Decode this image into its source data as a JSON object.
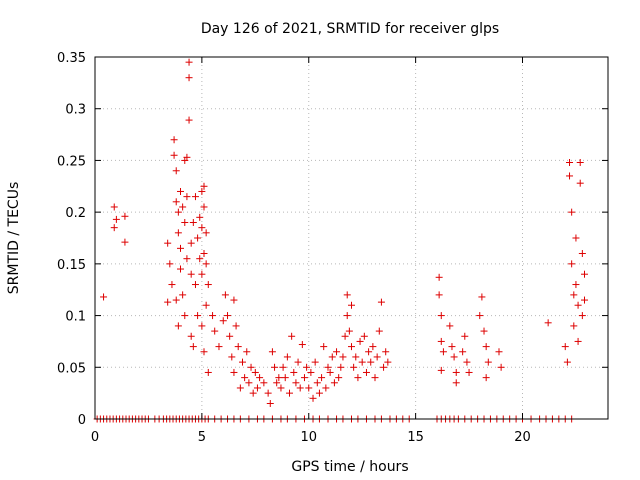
{
  "chart_data": {
    "type": "scatter",
    "title": "Day 126 of 2021, SRMTID for receiver glps",
    "xlabel": "GPS time / hours",
    "ylabel": "SRMTID / TECUs",
    "xlim": [
      0,
      24
    ],
    "ylim": [
      0,
      0.35
    ],
    "x_ticks": [
      0,
      5,
      10,
      15,
      20
    ],
    "x_tick_labels": [
      "0",
      "5",
      "10",
      "15",
      "20"
    ],
    "y_ticks": [
      0,
      0.05,
      0.1,
      0.15,
      0.2,
      0.25,
      0.3,
      0.35
    ],
    "y_tick_labels": [
      "0",
      "0.05",
      "0.1",
      "0.15",
      "0.2",
      "0.25",
      "0.3",
      "0.35"
    ],
    "grid": true,
    "marker": "plus",
    "series": [
      {
        "name": "SRMTID",
        "color": "#dd0000",
        "points": [
          [
            0.4,
            0.118
          ],
          [
            0.9,
            0.205
          ],
          [
            0.9,
            0.185
          ],
          [
            1.0,
            0.193
          ],
          [
            1.4,
            0.196
          ],
          [
            1.4,
            0.171
          ],
          [
            3.4,
            0.17
          ],
          [
            3.4,
            0.113
          ],
          [
            3.5,
            0.15
          ],
          [
            3.6,
            0.13
          ],
          [
            3.7,
            0.27
          ],
          [
            3.7,
            0.255
          ],
          [
            3.8,
            0.24
          ],
          [
            3.8,
            0.21
          ],
          [
            3.8,
            0.115
          ],
          [
            3.9,
            0.2
          ],
          [
            3.9,
            0.18
          ],
          [
            3.9,
            0.09
          ],
          [
            4.0,
            0.22
          ],
          [
            4.0,
            0.165
          ],
          [
            4.0,
            0.145
          ],
          [
            4.1,
            0.205
          ],
          [
            4.1,
            0.12
          ],
          [
            4.2,
            0.25
          ],
          [
            4.2,
            0.19
          ],
          [
            4.2,
            0.1
          ],
          [
            4.3,
            0.253
          ],
          [
            4.3,
            0.155
          ],
          [
            4.3,
            0.215
          ],
          [
            4.4,
            0.345
          ],
          [
            4.4,
            0.33
          ],
          [
            4.4,
            0.289
          ],
          [
            4.5,
            0.17
          ],
          [
            4.5,
            0.14
          ],
          [
            4.5,
            0.08
          ],
          [
            4.6,
            0.19
          ],
          [
            4.6,
            0.07
          ],
          [
            4.7,
            0.13
          ],
          [
            4.7,
            0.215
          ],
          [
            4.8,
            0.1
          ],
          [
            4.8,
            0.175
          ],
          [
            4.9,
            0.195
          ],
          [
            4.9,
            0.155
          ],
          [
            5.0,
            0.22
          ],
          [
            5.0,
            0.185
          ],
          [
            5.0,
            0.14
          ],
          [
            5.0,
            0.09
          ],
          [
            5.1,
            0.225
          ],
          [
            5.1,
            0.205
          ],
          [
            5.1,
            0.16
          ],
          [
            5.1,
            0.065
          ],
          [
            5.2,
            0.18
          ],
          [
            5.2,
            0.15
          ],
          [
            5.2,
            0.11
          ],
          [
            5.3,
            0.13
          ],
          [
            5.3,
            0.045
          ],
          [
            5.5,
            0.1
          ],
          [
            5.6,
            0.085
          ],
          [
            5.8,
            0.07
          ],
          [
            6.0,
            0.095
          ],
          [
            6.1,
            0.12
          ],
          [
            6.2,
            0.1
          ],
          [
            6.3,
            0.08
          ],
          [
            6.4,
            0.06
          ],
          [
            6.5,
            0.115
          ],
          [
            6.5,
            0.045
          ],
          [
            6.6,
            0.09
          ],
          [
            6.7,
            0.07
          ],
          [
            6.8,
            0.03
          ],
          [
            6.9,
            0.055
          ],
          [
            7.0,
            0.04
          ],
          [
            7.1,
            0.065
          ],
          [
            7.2,
            0.035
          ],
          [
            7.3,
            0.05
          ],
          [
            7.4,
            0.025
          ],
          [
            7.5,
            0.045
          ],
          [
            7.6,
            0.03
          ],
          [
            7.7,
            0.04
          ],
          [
            7.9,
            0.035
          ],
          [
            8.1,
            0.025
          ],
          [
            8.2,
            0.015
          ],
          [
            8.3,
            0.065
          ],
          [
            8.4,
            0.05
          ],
          [
            8.5,
            0.035
          ],
          [
            8.6,
            0.04
          ],
          [
            8.7,
            0.03
          ],
          [
            8.8,
            0.05
          ],
          [
            8.9,
            0.04
          ],
          [
            9.0,
            0.06
          ],
          [
            9.1,
            0.025
          ],
          [
            9.2,
            0.08
          ],
          [
            9.3,
            0.045
          ],
          [
            9.4,
            0.035
          ],
          [
            9.5,
            0.055
          ],
          [
            9.6,
            0.03
          ],
          [
            9.7,
            0.072
          ],
          [
            9.8,
            0.04
          ],
          [
            9.9,
            0.05
          ],
          [
            10.0,
            0.03
          ],
          [
            10.1,
            0.045
          ],
          [
            10.2,
            0.02
          ],
          [
            10.3,
            0.055
          ],
          [
            10.4,
            0.035
          ],
          [
            10.5,
            0.025
          ],
          [
            10.6,
            0.04
          ],
          [
            10.7,
            0.07
          ],
          [
            10.8,
            0.03
          ],
          [
            10.9,
            0.05
          ],
          [
            11.0,
            0.045
          ],
          [
            11.1,
            0.06
          ],
          [
            11.2,
            0.035
          ],
          [
            11.3,
            0.065
          ],
          [
            11.4,
            0.04
          ],
          [
            11.5,
            0.05
          ],
          [
            11.6,
            0.06
          ],
          [
            11.7,
            0.08
          ],
          [
            11.8,
            0.1
          ],
          [
            11.8,
            0.12
          ],
          [
            11.9,
            0.085
          ],
          [
            12.0,
            0.11
          ],
          [
            12.0,
            0.07
          ],
          [
            12.1,
            0.05
          ],
          [
            12.2,
            0.06
          ],
          [
            12.3,
            0.04
          ],
          [
            12.4,
            0.075
          ],
          [
            12.5,
            0.055
          ],
          [
            12.6,
            0.08
          ],
          [
            12.7,
            0.045
          ],
          [
            12.8,
            0.065
          ],
          [
            12.9,
            0.055
          ],
          [
            13.0,
            0.07
          ],
          [
            13.1,
            0.04
          ],
          [
            13.2,
            0.06
          ],
          [
            13.3,
            0.085
          ],
          [
            13.4,
            0.113
          ],
          [
            13.5,
            0.05
          ],
          [
            13.6,
            0.065
          ],
          [
            13.7,
            0.055
          ],
          [
            16.1,
            0.137
          ],
          [
            16.1,
            0.12
          ],
          [
            16.2,
            0.1
          ],
          [
            16.2,
            0.075
          ],
          [
            16.3,
            0.065
          ],
          [
            16.2,
            0.047
          ],
          [
            16.6,
            0.09
          ],
          [
            16.7,
            0.07
          ],
          [
            16.8,
            0.06
          ],
          [
            16.9,
            0.045
          ],
          [
            16.9,
            0.035
          ],
          [
            17.2,
            0.065
          ],
          [
            17.3,
            0.08
          ],
          [
            17.4,
            0.055
          ],
          [
            17.5,
            0.045
          ],
          [
            18.0,
            0.1
          ],
          [
            18.1,
            0.118
          ],
          [
            18.2,
            0.085
          ],
          [
            18.3,
            0.07
          ],
          [
            18.4,
            0.055
          ],
          [
            18.3,
            0.04
          ],
          [
            18.9,
            0.065
          ],
          [
            19.0,
            0.05
          ],
          [
            21.2,
            0.093
          ],
          [
            22.0,
            0.07
          ],
          [
            22.1,
            0.055
          ],
          [
            22.2,
            0.248
          ],
          [
            22.2,
            0.235
          ],
          [
            22.3,
            0.2
          ],
          [
            22.3,
            0.15
          ],
          [
            22.4,
            0.12
          ],
          [
            22.4,
            0.09
          ],
          [
            22.5,
            0.175
          ],
          [
            22.5,
            0.13
          ],
          [
            22.6,
            0.11
          ],
          [
            22.6,
            0.075
          ],
          [
            22.7,
            0.248
          ],
          [
            22.7,
            0.228
          ],
          [
            22.8,
            0.16
          ],
          [
            22.8,
            0.1
          ],
          [
            22.9,
            0.14
          ],
          [
            22.9,
            0.115
          ]
        ]
      }
    ],
    "zero_value_points": [
      0.1,
      0.25,
      0.4,
      0.55,
      0.7,
      0.85,
      1.0,
      1.15,
      1.3,
      1.45,
      1.6,
      1.75,
      1.9,
      2.05,
      2.2,
      2.35,
      2.5,
      2.8,
      3.0,
      3.2,
      3.35,
      3.5,
      3.65,
      3.8,
      3.95,
      4.1,
      4.25,
      4.4,
      4.55,
      4.7,
      4.85,
      5.0,
      5.15,
      5.3,
      5.6,
      5.9,
      6.2,
      6.5,
      6.8,
      7.2,
      7.6,
      7.9,
      8.3,
      8.7,
      9.0,
      9.4,
      9.8,
      10.2,
      10.5,
      10.9,
      11.3,
      11.6,
      12.0,
      12.3,
      12.7,
      13.1,
      13.4,
      13.8,
      14.1,
      14.4,
      14.7,
      16.0,
      16.2,
      16.4,
      16.6,
      16.8,
      17.0,
      17.3,
      17.6,
      17.9,
      18.2,
      18.5,
      18.8,
      19.1,
      19.4,
      19.7,
      20.0,
      20.4,
      20.8,
      21.1,
      21.4,
      21.7,
      22.0,
      22.3
    ]
  }
}
